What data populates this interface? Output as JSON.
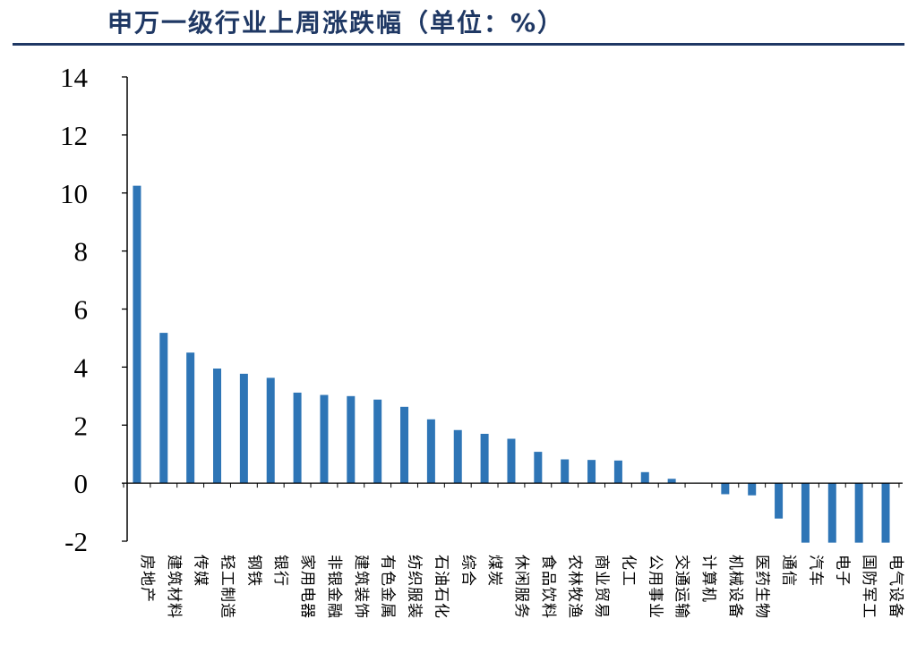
{
  "chart_data": {
    "type": "bar",
    "title": "申万一级行业上周涨跌幅（单位：%）",
    "xlabel": "",
    "ylabel": "",
    "ylim": [
      -2,
      14
    ],
    "yticks": [
      "14",
      "12",
      "10",
      "8",
      "6",
      "4",
      "2",
      "0",
      "-2"
    ],
    "grid": false,
    "legend": "none",
    "bar_color": "#2e75b6",
    "axis_color": "#000000",
    "title_color": "#1f3864",
    "categories": [
      "房地产",
      "建筑材料",
      "传媒",
      "轻工制造",
      "钢铁",
      "银行",
      "家用电器",
      "非银金融",
      "建筑装饰",
      "有色金属",
      "纺织服装",
      "石油石化",
      "综合",
      "煤炭",
      "休闲服务",
      "食品饮料",
      "农林牧渔",
      "商业贸易",
      "化工",
      "公用事业",
      "交通运输",
      "计算机",
      "机械设备",
      "医药生物",
      "通信",
      "汽车",
      "电子",
      "国防军工",
      "电气设备"
    ],
    "values": [
      10.25,
      5.18,
      4.5,
      3.95,
      3.77,
      3.63,
      3.12,
      3.04,
      3.0,
      2.88,
      2.63,
      2.2,
      1.83,
      1.7,
      1.53,
      1.08,
      0.82,
      0.8,
      0.78,
      0.38,
      0.15,
      0.02,
      -0.38,
      -0.42,
      -1.22,
      -2.05,
      -2.05,
      -2.05,
      -2.05
    ]
  }
}
